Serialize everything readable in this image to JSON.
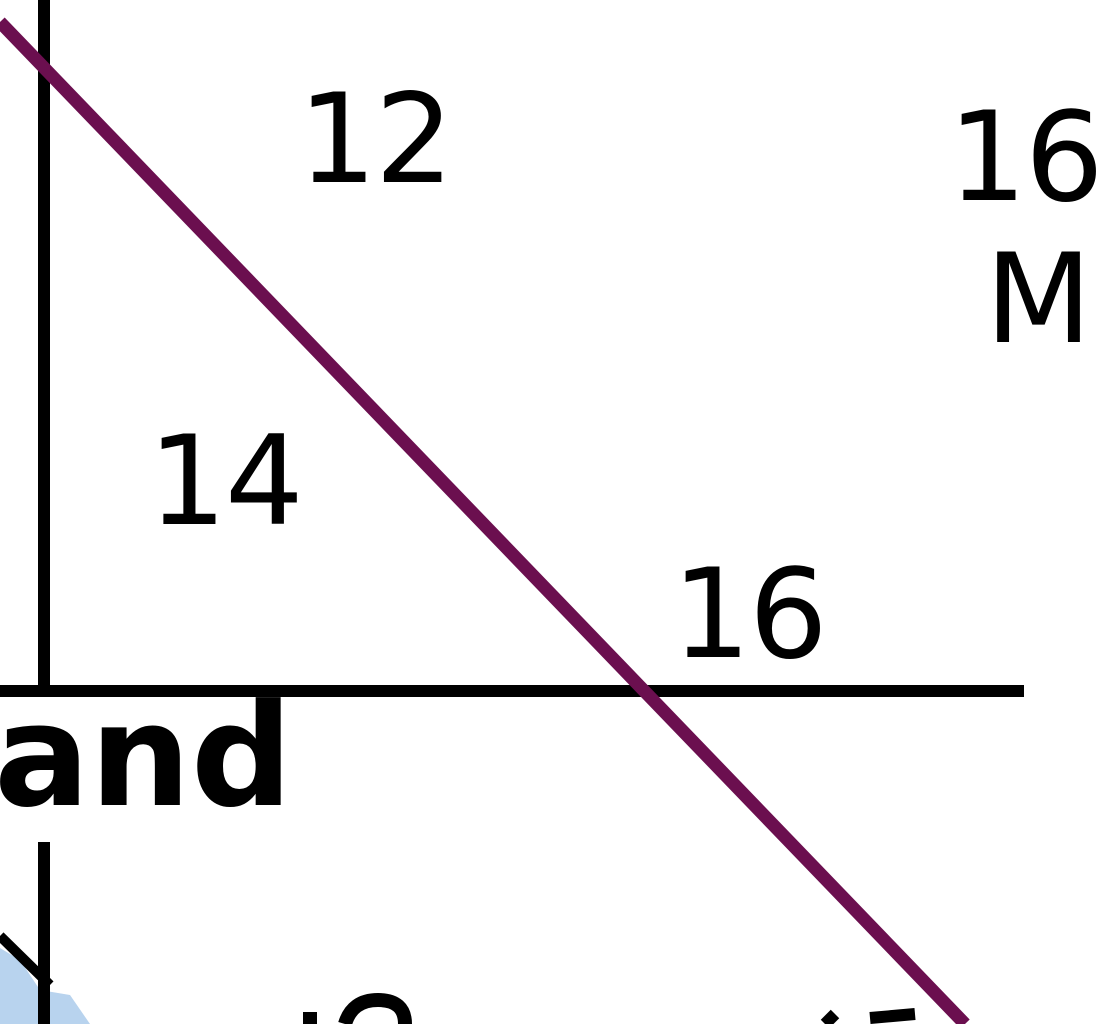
{
  "map": {
    "labels": {
      "top_left_number": "12",
      "top_right_number": "16",
      "top_right_letter": "M",
      "left_number": "14",
      "right_number": "16",
      "place_name_fragment": "and"
    },
    "colors": {
      "background": "#ffffff",
      "boundary_line": "#000000",
      "highlight_line": "#6b0f4f",
      "water": "#b8d3ee"
    }
  }
}
